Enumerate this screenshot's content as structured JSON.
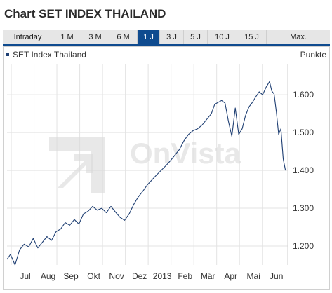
{
  "header": {
    "title": "Chart SET INDEX THAILAND"
  },
  "tabs": [
    {
      "label": "Intraday",
      "active": false
    },
    {
      "label": "1 M",
      "active": false
    },
    {
      "label": "3 M",
      "active": false
    },
    {
      "label": "6 M",
      "active": false
    },
    {
      "label": "1 J",
      "active": true
    },
    {
      "label": "3 J",
      "active": false
    },
    {
      "label": "5 J",
      "active": false
    },
    {
      "label": "10 J",
      "active": false
    },
    {
      "label": "15 J",
      "active": false
    },
    {
      "label": "Max.",
      "active": false
    }
  ],
  "watermark": "OnVista",
  "colors": {
    "accent": "#0f4b8f",
    "line": "#1f3f73",
    "grid": "#e3e3e3"
  },
  "chart_data": {
    "type": "line",
    "legend": "SET Index Thailand",
    "ylabel": "Punkte",
    "legend_position": "top-left",
    "grid": true,
    "ylim": [
      1150,
      1680
    ],
    "yticks": [
      1200,
      1300,
      1400,
      1500,
      1600
    ],
    "ytick_labels": [
      "1.200",
      "1.300",
      "1.400",
      "1.500",
      "1.600"
    ],
    "xlim": [
      0,
      12.3
    ],
    "xticks": [
      0.8,
      1.8,
      2.8,
      3.8,
      4.8,
      5.8,
      6.8,
      7.8,
      8.8,
      9.8,
      10.8,
      11.8
    ],
    "xtick_labels": [
      "Jul",
      "Aug",
      "Sep",
      "Okt",
      "Nov",
      "Dez",
      "2013",
      "Feb",
      "Mär",
      "Apr",
      "Mai",
      "Jun"
    ],
    "series": [
      {
        "name": "SET Index Thailand",
        "x": [
          0,
          0.15,
          0.35,
          0.55,
          0.75,
          0.95,
          1.15,
          1.35,
          1.55,
          1.75,
          1.95,
          2.15,
          2.35,
          2.55,
          2.75,
          2.95,
          3.15,
          3.35,
          3.55,
          3.75,
          3.95,
          4.15,
          4.35,
          4.55,
          4.75,
          4.95,
          5.15,
          5.35,
          5.55,
          5.75,
          5.95,
          6.15,
          6.35,
          6.55,
          6.75,
          6.95,
          7.15,
          7.35,
          7.55,
          7.75,
          7.95,
          8.15,
          8.35,
          8.55,
          8.75,
          8.95,
          9.1,
          9.25,
          9.4,
          9.55,
          9.7,
          9.85,
          10.0,
          10.15,
          10.3,
          10.45,
          10.6,
          10.75,
          10.9,
          11.05,
          11.2,
          11.35,
          11.5,
          11.6,
          11.7,
          11.8,
          11.9,
          12.0,
          12.1,
          12.2
        ],
        "values": [
          1165,
          1178,
          1150,
          1190,
          1205,
          1198,
          1220,
          1195,
          1210,
          1225,
          1215,
          1238,
          1245,
          1262,
          1255,
          1270,
          1258,
          1285,
          1292,
          1305,
          1295,
          1300,
          1288,
          1305,
          1290,
          1276,
          1268,
          1285,
          1310,
          1330,
          1345,
          1362,
          1375,
          1388,
          1400,
          1412,
          1425,
          1440,
          1455,
          1478,
          1495,
          1505,
          1510,
          1520,
          1535,
          1550,
          1575,
          1580,
          1585,
          1578,
          1530,
          1490,
          1565,
          1495,
          1510,
          1545,
          1568,
          1580,
          1595,
          1608,
          1600,
          1620,
          1635,
          1610,
          1602,
          1555,
          1495,
          1510,
          1430,
          1400
        ]
      }
    ]
  }
}
